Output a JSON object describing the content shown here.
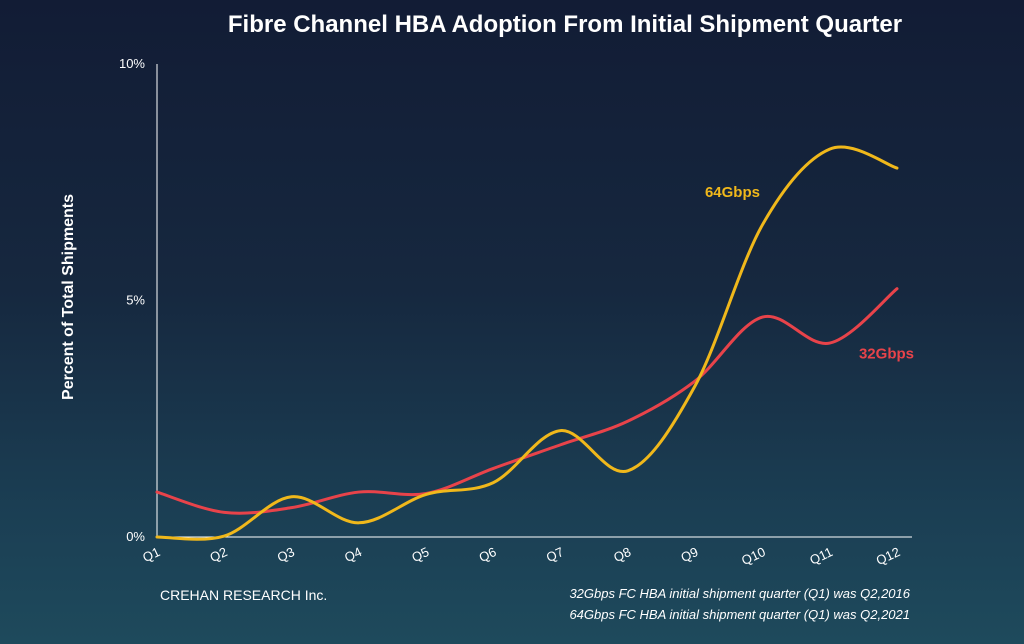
{
  "chart_data": {
    "type": "line",
    "title": "Fibre Channel HBA Adoption From Initial Shipment Quarter",
    "xlabel": "",
    "ylabel": "Percent of Total Shipments",
    "categories": [
      "Q1",
      "Q2",
      "Q3",
      "Q4",
      "Q5",
      "Q6",
      "Q7",
      "Q8",
      "Q9",
      "Q10",
      "Q11",
      "Q12"
    ],
    "yticks": [
      "0%",
      "5%",
      "10%"
    ],
    "ylim": [
      0,
      10
    ],
    "grid": false,
    "series": [
      {
        "name": "32Gbps",
        "color": "#e8434a",
        "values": [
          0.95,
          0.52,
          0.62,
          0.95,
          0.92,
          1.45,
          1.95,
          2.45,
          3.3,
          4.65,
          4.1,
          5.25
        ]
      },
      {
        "name": "64Gbps",
        "color": "#f0b81b",
        "values": [
          0.0,
          0.02,
          0.85,
          0.3,
          0.9,
          1.15,
          2.25,
          1.4,
          3.2,
          6.6,
          8.2,
          7.8
        ]
      }
    ]
  },
  "credit": "CREHAN RESEARCH Inc.",
  "notes": [
    "32Gbps FC HBA initial shipment quarter (Q1) was Q2,2016",
    "64Gbps FC HBA initial shipment quarter (Q1) was Q2,2021"
  ]
}
